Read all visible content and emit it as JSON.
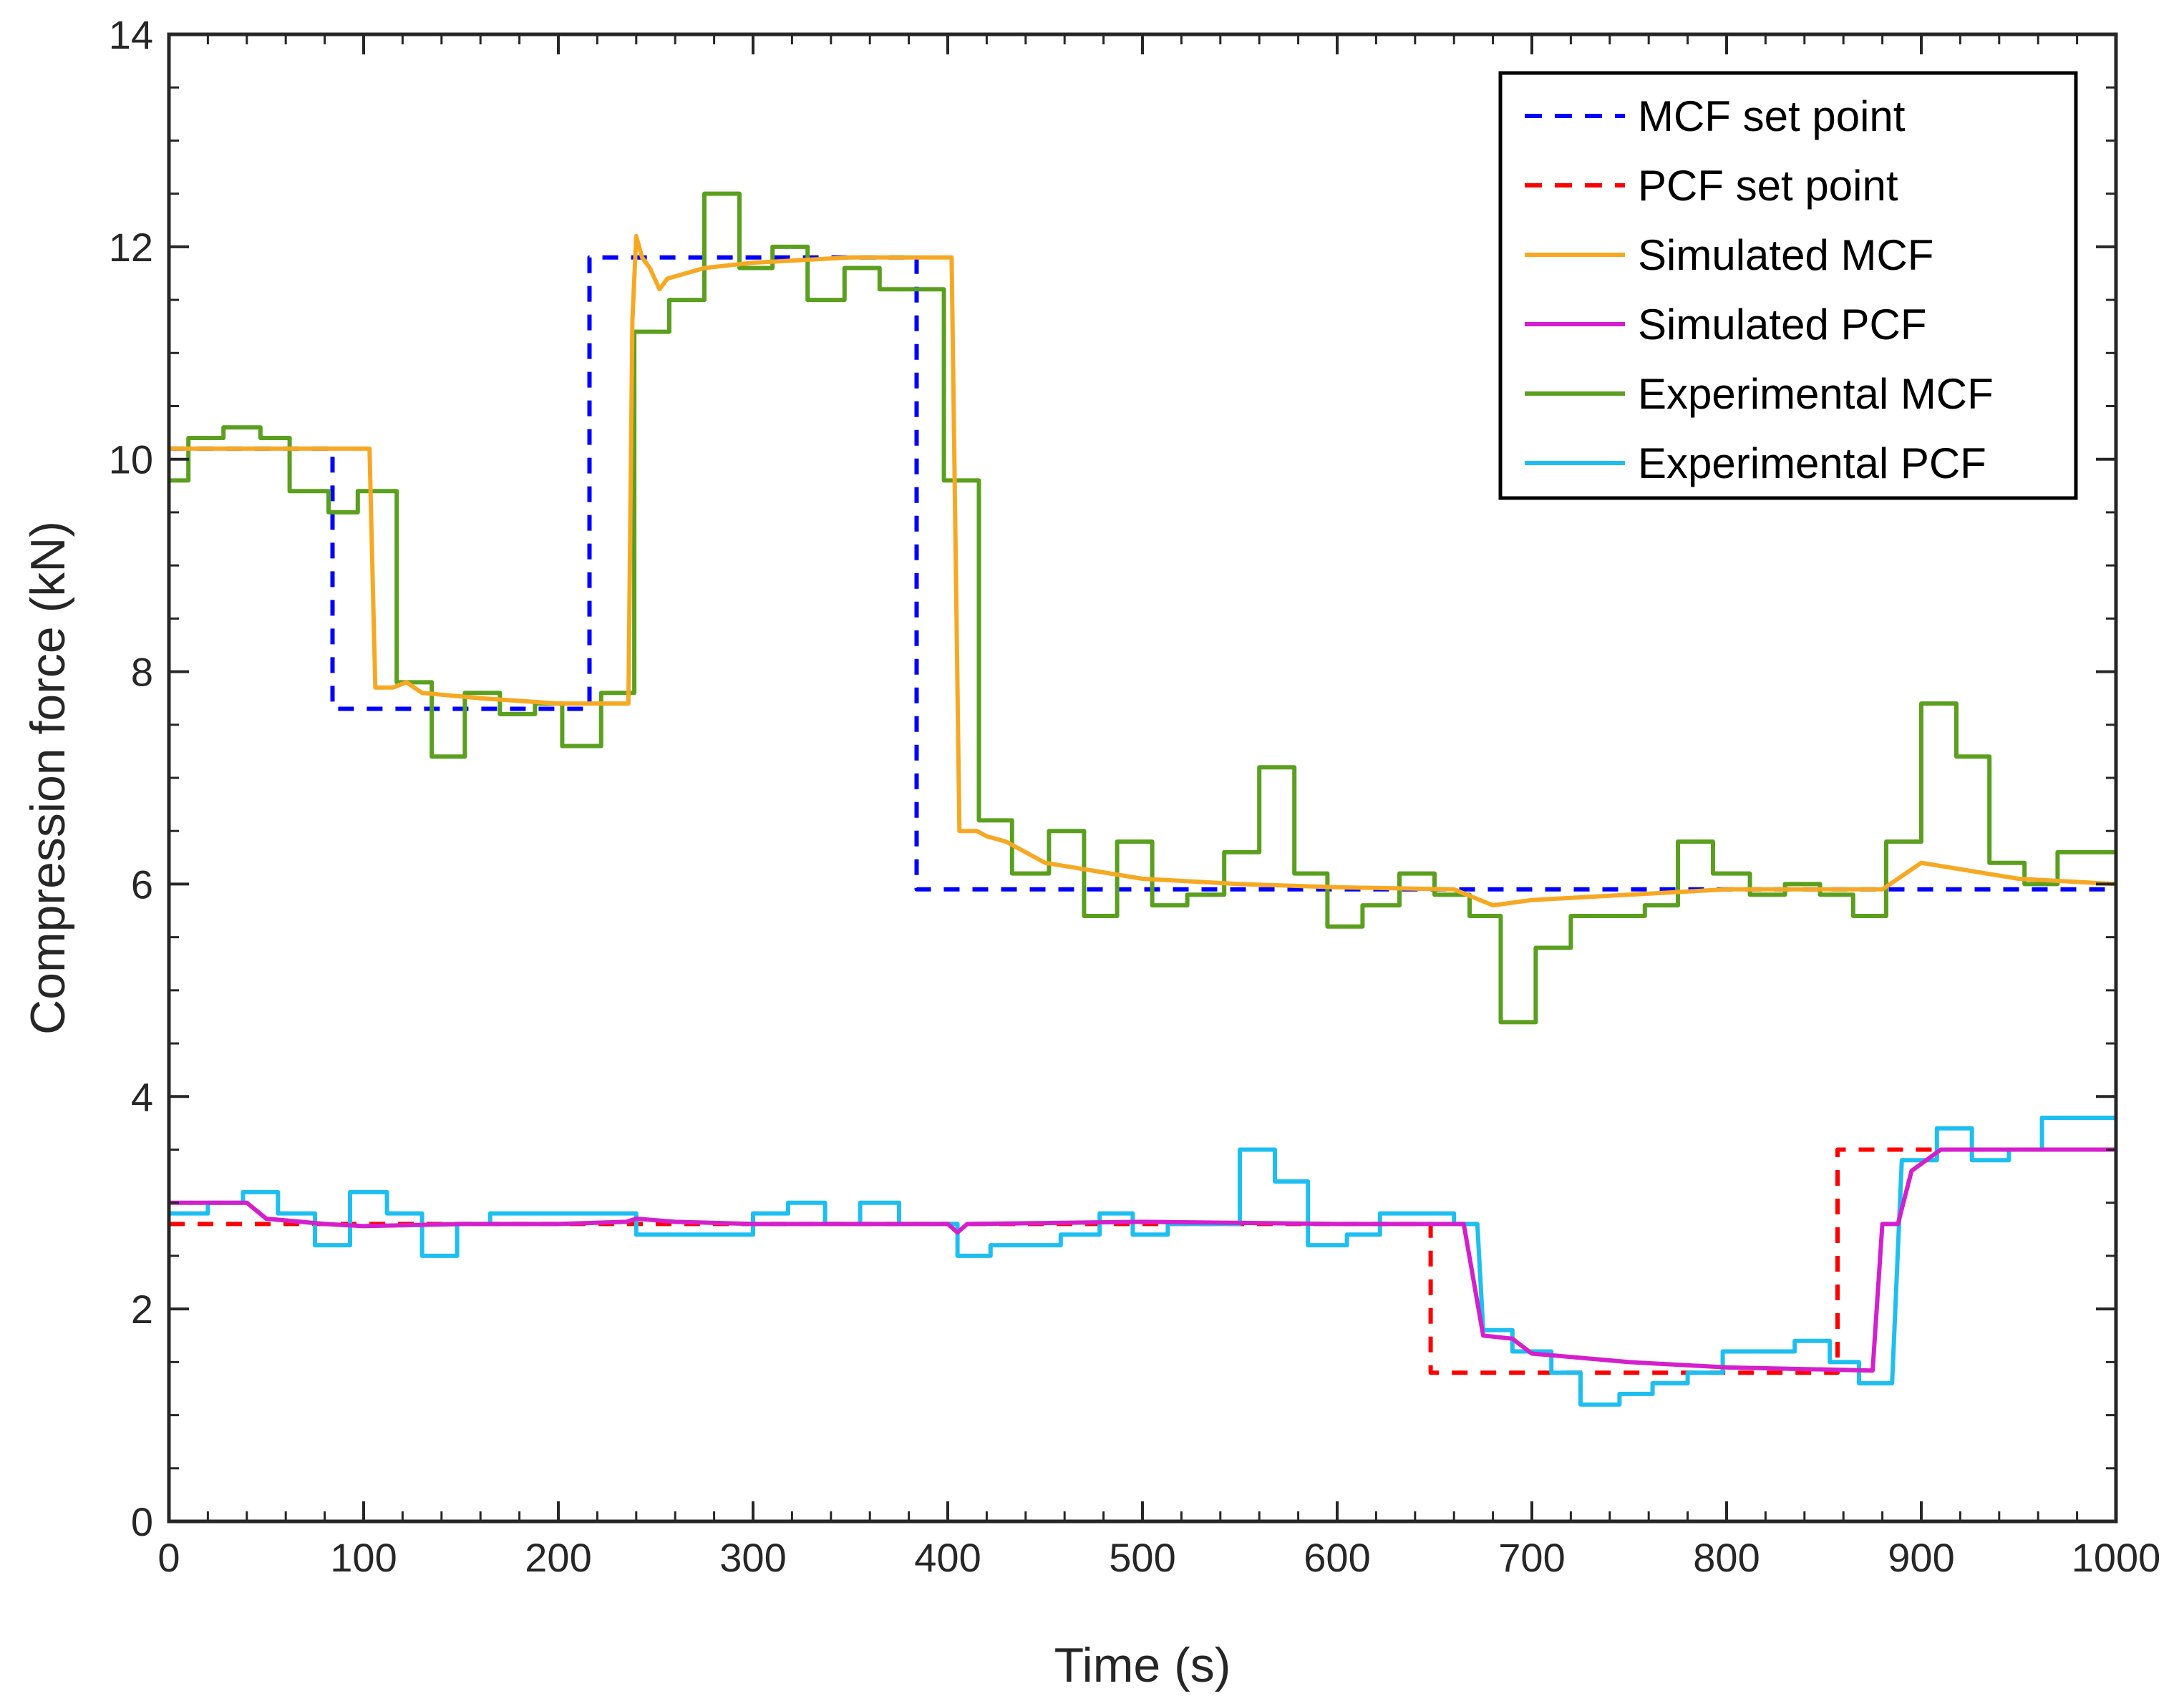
{
  "chart_data": {
    "type": "line",
    "title": "",
    "xlabel": "Time (s)",
    "ylabel": "Compression force (kN)",
    "xlim": [
      0,
      1000
    ],
    "ylim": [
      0,
      14
    ],
    "x_ticks": [
      0,
      100,
      200,
      300,
      400,
      500,
      600,
      700,
      800,
      900,
      1000
    ],
    "y_ticks": [
      0,
      2,
      4,
      6,
      8,
      10,
      12,
      14
    ],
    "grid": false,
    "legend_position": "top-right",
    "series": [
      {
        "name": "MCF set point",
        "color": "#0000ff",
        "style": "dashed",
        "points": [
          [
            0,
            10.1
          ],
          [
            84,
            10.1
          ],
          [
            84,
            7.65
          ],
          [
            216,
            7.65
          ],
          [
            216,
            11.9
          ],
          [
            384,
            11.9
          ],
          [
            384,
            5.95
          ],
          [
            1000,
            5.95
          ]
        ]
      },
      {
        "name": "PCF set point",
        "color": "#ff0000",
        "style": "dashed",
        "points": [
          [
            0,
            2.8
          ],
          [
            648,
            2.8
          ],
          [
            648,
            1.4
          ],
          [
            857,
            1.4
          ],
          [
            857,
            3.5
          ],
          [
            1000,
            3.5
          ]
        ]
      },
      {
        "name": "Simulated MCF",
        "color": "#f7a823",
        "style": "solid",
        "points": [
          [
            0,
            10.1
          ],
          [
            103,
            10.1
          ],
          [
            106,
            7.85
          ],
          [
            115,
            7.85
          ],
          [
            122,
            7.9
          ],
          [
            130,
            7.8
          ],
          [
            160,
            7.75
          ],
          [
            200,
            7.7
          ],
          [
            236,
            7.7
          ],
          [
            238,
            11.3
          ],
          [
            240,
            12.1
          ],
          [
            243,
            11.9
          ],
          [
            247,
            11.8
          ],
          [
            252,
            11.6
          ],
          [
            256,
            11.7
          ],
          [
            275,
            11.8
          ],
          [
            300,
            11.85
          ],
          [
            350,
            11.9
          ],
          [
            402,
            11.9
          ],
          [
            406,
            6.5
          ],
          [
            415,
            6.5
          ],
          [
            420,
            6.45
          ],
          [
            430,
            6.4
          ],
          [
            450,
            6.2
          ],
          [
            500,
            6.05
          ],
          [
            550,
            6.0
          ],
          [
            600,
            5.97
          ],
          [
            660,
            5.95
          ],
          [
            680,
            5.8
          ],
          [
            700,
            5.85
          ],
          [
            750,
            5.9
          ],
          [
            800,
            5.95
          ],
          [
            880,
            5.95
          ],
          [
            900,
            6.2
          ],
          [
            950,
            6.05
          ],
          [
            1000,
            6.0
          ]
        ]
      },
      {
        "name": "Simulated PCF",
        "color": "#d41fcc",
        "style": "solid",
        "points": [
          [
            0,
            3.0
          ],
          [
            40,
            3.0
          ],
          [
            50,
            2.85
          ],
          [
            80,
            2.8
          ],
          [
            100,
            2.78
          ],
          [
            150,
            2.8
          ],
          [
            200,
            2.8
          ],
          [
            235,
            2.82
          ],
          [
            240,
            2.85
          ],
          [
            260,
            2.82
          ],
          [
            300,
            2.8
          ],
          [
            400,
            2.8
          ],
          [
            405,
            2.72
          ],
          [
            410,
            2.8
          ],
          [
            500,
            2.82
          ],
          [
            600,
            2.8
          ],
          [
            665,
            2.8
          ],
          [
            675,
            1.75
          ],
          [
            690,
            1.72
          ],
          [
            700,
            1.58
          ],
          [
            750,
            1.5
          ],
          [
            800,
            1.45
          ],
          [
            875,
            1.42
          ],
          [
            880,
            2.8
          ],
          [
            888,
            2.8
          ],
          [
            895,
            3.3
          ],
          [
            910,
            3.5
          ],
          [
            1000,
            3.5
          ]
        ]
      },
      {
        "name": "Experimental MCF",
        "color": "#5aa01e",
        "style": "solid",
        "points": [
          [
            0,
            9.8
          ],
          [
            10,
            9.8
          ],
          [
            10,
            10.2
          ],
          [
            28,
            10.2
          ],
          [
            28,
            10.3
          ],
          [
            47,
            10.3
          ],
          [
            47,
            10.2
          ],
          [
            62,
            10.2
          ],
          [
            62,
            9.7
          ],
          [
            82,
            9.7
          ],
          [
            82,
            9.5
          ],
          [
            97,
            9.5
          ],
          [
            97,
            9.7
          ],
          [
            117,
            9.7
          ],
          [
            117,
            7.9
          ],
          [
            135,
            7.9
          ],
          [
            135,
            7.2
          ],
          [
            152,
            7.2
          ],
          [
            152,
            7.8
          ],
          [
            170,
            7.8
          ],
          [
            170,
            7.6
          ],
          [
            188,
            7.6
          ],
          [
            188,
            7.7
          ],
          [
            202,
            7.7
          ],
          [
            202,
            7.3
          ],
          [
            222,
            7.3
          ],
          [
            222,
            7.8
          ],
          [
            239,
            7.8
          ],
          [
            239,
            11.2
          ],
          [
            257,
            11.2
          ],
          [
            257,
            11.5
          ],
          [
            275,
            11.5
          ],
          [
            275,
            12.5
          ],
          [
            293,
            12.5
          ],
          [
            293,
            11.8
          ],
          [
            310,
            11.8
          ],
          [
            310,
            12.0
          ],
          [
            328,
            12.0
          ],
          [
            328,
            11.5
          ],
          [
            347,
            11.5
          ],
          [
            347,
            11.8
          ],
          [
            365,
            11.8
          ],
          [
            365,
            11.6
          ],
          [
            383,
            11.6
          ],
          [
            383,
            11.6
          ],
          [
            398,
            11.6
          ],
          [
            398,
            9.8
          ],
          [
            416,
            9.8
          ],
          [
            416,
            6.6
          ],
          [
            433,
            6.6
          ],
          [
            433,
            6.1
          ],
          [
            452,
            6.1
          ],
          [
            452,
            6.5
          ],
          [
            470,
            6.5
          ],
          [
            470,
            5.7
          ],
          [
            487,
            5.7
          ],
          [
            487,
            6.4
          ],
          [
            505,
            6.4
          ],
          [
            505,
            5.8
          ],
          [
            523,
            5.8
          ],
          [
            523,
            5.9
          ],
          [
            542,
            5.9
          ],
          [
            542,
            6.3
          ],
          [
            560,
            6.3
          ],
          [
            560,
            7.1
          ],
          [
            578,
            7.1
          ],
          [
            578,
            6.1
          ],
          [
            595,
            6.1
          ],
          [
            595,
            5.6
          ],
          [
            613,
            5.6
          ],
          [
            613,
            5.8
          ],
          [
            632,
            5.8
          ],
          [
            632,
            6.1
          ],
          [
            650,
            6.1
          ],
          [
            650,
            5.9
          ],
          [
            668,
            5.9
          ],
          [
            668,
            5.7
          ],
          [
            684,
            5.7
          ],
          [
            684,
            4.7
          ],
          [
            702,
            4.7
          ],
          [
            702,
            5.4
          ],
          [
            720,
            5.4
          ],
          [
            720,
            5.7
          ],
          [
            740,
            5.7
          ],
          [
            740,
            5.7
          ],
          [
            758,
            5.7
          ],
          [
            758,
            5.8
          ],
          [
            775,
            5.8
          ],
          [
            775,
            6.4
          ],
          [
            793,
            6.4
          ],
          [
            793,
            6.1
          ],
          [
            812,
            6.1
          ],
          [
            812,
            5.9
          ],
          [
            830,
            5.9
          ],
          [
            830,
            6.0
          ],
          [
            848,
            6.0
          ],
          [
            848,
            5.9
          ],
          [
            865,
            5.9
          ],
          [
            865,
            5.7
          ],
          [
            882,
            5.7
          ],
          [
            882,
            6.4
          ],
          [
            900,
            6.4
          ],
          [
            900,
            7.7
          ],
          [
            918,
            7.7
          ],
          [
            918,
            7.2
          ],
          [
            935,
            7.2
          ],
          [
            935,
            6.2
          ],
          [
            953,
            6.2
          ],
          [
            953,
            6.0
          ],
          [
            970,
            6.0
          ],
          [
            970,
            6.3
          ],
          [
            1000,
            6.3
          ]
        ]
      },
      {
        "name": "Experimental PCF",
        "color": "#1ebff0",
        "style": "solid",
        "points": [
          [
            0,
            2.9
          ],
          [
            20,
            2.9
          ],
          [
            20,
            3.0
          ],
          [
            38,
            3.0
          ],
          [
            38,
            3.1
          ],
          [
            56,
            3.1
          ],
          [
            56,
            2.9
          ],
          [
            75,
            2.9
          ],
          [
            75,
            2.6
          ],
          [
            93,
            2.6
          ],
          [
            93,
            3.1
          ],
          [
            112,
            3.1
          ],
          [
            112,
            2.9
          ],
          [
            130,
            2.9
          ],
          [
            130,
            2.5
          ],
          [
            148,
            2.5
          ],
          [
            148,
            2.8
          ],
          [
            165,
            2.8
          ],
          [
            165,
            2.9
          ],
          [
            240,
            2.9
          ],
          [
            240,
            2.7
          ],
          [
            300,
            2.7
          ],
          [
            300,
            2.9
          ],
          [
            318,
            2.9
          ],
          [
            318,
            3.0
          ],
          [
            337,
            3.0
          ],
          [
            337,
            2.8
          ],
          [
            355,
            2.8
          ],
          [
            355,
            3.0
          ],
          [
            375,
            3.0
          ],
          [
            375,
            2.8
          ],
          [
            390,
            2.8
          ],
          [
            390,
            2.8
          ],
          [
            405,
            2.8
          ],
          [
            405,
            2.5
          ],
          [
            422,
            2.5
          ],
          [
            422,
            2.6
          ],
          [
            440,
            2.6
          ],
          [
            440,
            2.6
          ],
          [
            458,
            2.6
          ],
          [
            458,
            2.7
          ],
          [
            478,
            2.7
          ],
          [
            478,
            2.9
          ],
          [
            495,
            2.9
          ],
          [
            495,
            2.7
          ],
          [
            513,
            2.7
          ],
          [
            513,
            2.8
          ],
          [
            550,
            2.8
          ],
          [
            550,
            3.5
          ],
          [
            568,
            3.5
          ],
          [
            568,
            3.2
          ],
          [
            585,
            3.2
          ],
          [
            585,
            2.6
          ],
          [
            605,
            2.6
          ],
          [
            605,
            2.7
          ],
          [
            622,
            2.7
          ],
          [
            622,
            2.9
          ],
          [
            640,
            2.9
          ],
          [
            640,
            2.9
          ],
          [
            660,
            2.9
          ],
          [
            660,
            2.8
          ],
          [
            672,
            2.8
          ],
          [
            675,
            1.8
          ],
          [
            690,
            1.8
          ],
          [
            690,
            1.6
          ],
          [
            710,
            1.6
          ],
          [
            710,
            1.4
          ],
          [
            725,
            1.4
          ],
          [
            725,
            1.1
          ],
          [
            745,
            1.1
          ],
          [
            745,
            1.2
          ],
          [
            762,
            1.2
          ],
          [
            762,
            1.3
          ],
          [
            780,
            1.3
          ],
          [
            780,
            1.4
          ],
          [
            798,
            1.4
          ],
          [
            798,
            1.6
          ],
          [
            815,
            1.6
          ],
          [
            815,
            1.6
          ],
          [
            835,
            1.6
          ],
          [
            835,
            1.7
          ],
          [
            853,
            1.7
          ],
          [
            853,
            1.5
          ],
          [
            868,
            1.5
          ],
          [
            868,
            1.3
          ],
          [
            885,
            1.3
          ],
          [
            890,
            3.4
          ],
          [
            908,
            3.4
          ],
          [
            908,
            3.7
          ],
          [
            926,
            3.7
          ],
          [
            926,
            3.4
          ],
          [
            945,
            3.4
          ],
          [
            945,
            3.5
          ],
          [
            962,
            3.5
          ],
          [
            962,
            3.8
          ],
          [
            1000,
            3.8
          ]
        ]
      }
    ]
  }
}
